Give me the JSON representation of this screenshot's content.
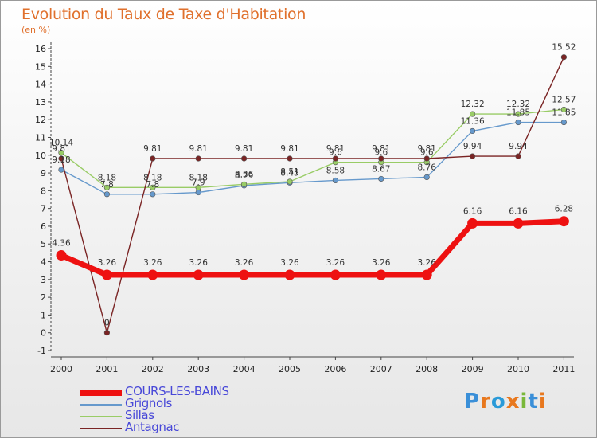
{
  "chart_data": {
    "type": "line",
    "title": "Evolution du Taux de Taxe d'Habitation",
    "subtitle": "(en %)",
    "xlabel": "",
    "ylabel": "",
    "ylim": [
      -1,
      16
    ],
    "yticks": [
      "-1",
      "0",
      "1",
      "2",
      "3",
      "4",
      "5",
      "6",
      "7",
      "8",
      "9",
      "10",
      "11",
      "12",
      "13",
      "14",
      "15",
      "16"
    ],
    "categories": [
      "2000",
      "2001",
      "2002",
      "2003",
      "2004",
      "2005",
      "2006",
      "2007",
      "2008",
      "2009",
      "2010",
      "2011"
    ],
    "grid": false,
    "legend_position": "bottom-left",
    "series": [
      {
        "name": "Grignols",
        "color": "#6699cc",
        "values": [
          9.18,
          7.8,
          7.8,
          7.9,
          8.29,
          8.45,
          8.58,
          8.67,
          8.76,
          11.36,
          11.85,
          11.85
        ],
        "labels": [
          "9.18",
          "7.8",
          "7.8",
          "7.9",
          "8.29",
          "8.45",
          "8.58",
          "8.67",
          "8.76",
          "11.36",
          "11.85",
          "11.85"
        ]
      },
      {
        "name": "Sillas",
        "color": "#99cc66",
        "values": [
          10.14,
          8.18,
          8.18,
          8.18,
          8.36,
          8.51,
          9.6,
          9.6,
          9.6,
          12.32,
          12.32,
          12.57
        ],
        "labels": [
          "10.14",
          "8.18",
          "8.18",
          "8.18",
          "8.36",
          "8.51",
          "9.6",
          "9.6",
          "9.6",
          "12.32",
          "12.32",
          "12.57"
        ]
      },
      {
        "name": "Antagnac",
        "color": "#7a2424",
        "values": [
          9.81,
          0,
          9.81,
          9.81,
          9.81,
          9.81,
          9.81,
          9.81,
          9.81,
          9.94,
          9.94,
          15.52
        ],
        "labels": [
          "9.81",
          "0",
          "9.81",
          "9.81",
          "9.81",
          "9.81",
          "9.81",
          "9.81",
          "9.81",
          "9.94",
          "9.94",
          "15.52"
        ]
      },
      {
        "name": "COURS-LES-BAINS",
        "color": "#ee1111",
        "values": [
          4.36,
          3.26,
          3.26,
          3.26,
          3.26,
          3.26,
          3.26,
          3.26,
          3.26,
          6.16,
          6.16,
          6.28
        ],
        "labels": [
          "4.36",
          "3.26",
          "3.26",
          "3.26",
          "3.26",
          "3.26",
          "3.26",
          "3.26",
          "3.26",
          "6.16",
          "6.16",
          "6.28"
        ]
      }
    ],
    "legend": [
      "COURS-LES-BAINS",
      "Grignols",
      "Sillas",
      "Antagnac"
    ]
  },
  "branding": {
    "logo_text": "Proxiti",
    "logo_colors": [
      "#3a8fd8",
      "#e8781e",
      "#2a9ad8",
      "#e8781e",
      "#7ab83a",
      "#3a8fd8",
      "#e8781e"
    ]
  }
}
